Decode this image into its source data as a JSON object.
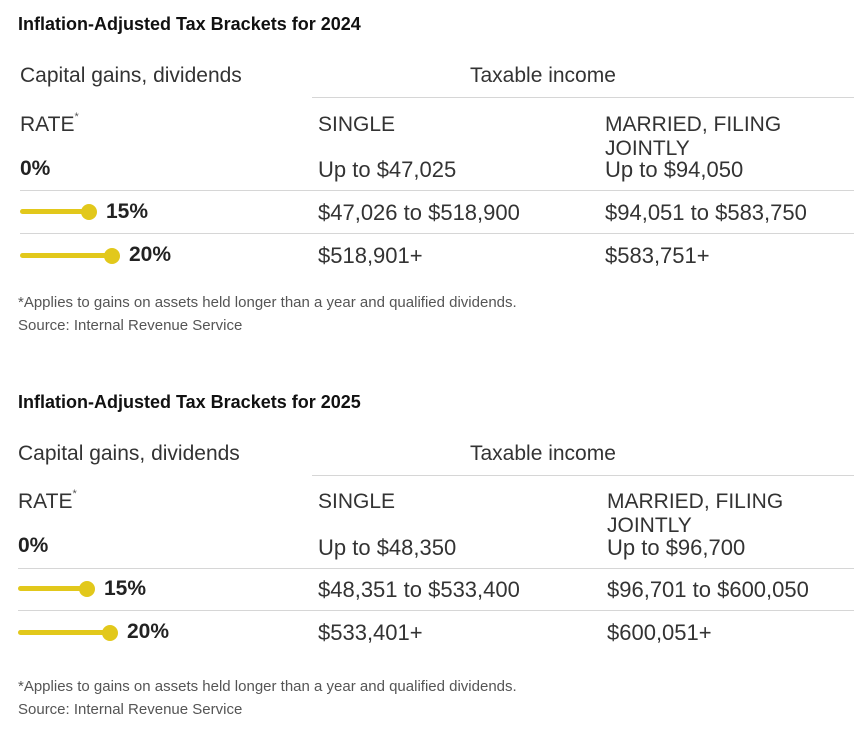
{
  "chart_data": [
    {
      "type": "table",
      "title": "Inflation-Adjusted Tax Brackets for 2024",
      "left_header": "Capital gains, dividends",
      "group_header": "Taxable income",
      "columns": [
        "RATE",
        "SINGLE",
        "MARRIED, FILING JOINTLY"
      ],
      "rate_footnote_mark": "*",
      "rows": [
        {
          "rate": "0%",
          "rate_value": 0,
          "single": "Up to $47,025",
          "married": "Up to $94,050"
        },
        {
          "rate": "15%",
          "rate_value": 15,
          "single": "$47,026 to $518,900",
          "married": "$94,051 to $583,750"
        },
        {
          "rate": "20%",
          "rate_value": 20,
          "single": "$518,901+",
          "married": "$583,751+"
        }
      ],
      "footnote": "*Applies to gains on assets held longer than a year and qualified dividends.",
      "source": "Source: Internal Revenue Service"
    },
    {
      "type": "table",
      "title": "Inflation-Adjusted Tax Brackets for 2025",
      "left_header": "Capital gains, dividends",
      "group_header": "Taxable income",
      "columns": [
        "RATE",
        "SINGLE",
        "MARRIED, FILING JOINTLY"
      ],
      "rate_footnote_mark": "*",
      "rows": [
        {
          "rate": "0%",
          "rate_value": 0,
          "single": "Up to $48,350",
          "married": "Up to $96,700"
        },
        {
          "rate": "15%",
          "rate_value": 15,
          "single": "$48,351 to $533,400",
          "married": "$96,701 to $600,050"
        },
        {
          "rate": "20%",
          "rate_value": 20,
          "single": "$533,401+",
          "married": "$600,051+"
        }
      ],
      "footnote": "*Applies to gains on assets held longer than a year and qualified dividends.",
      "source": "Source: Internal Revenue Service"
    }
  ],
  "colors": {
    "accent": "#e2c81b",
    "rule": "#d6d6d6",
    "text": "#333333"
  }
}
